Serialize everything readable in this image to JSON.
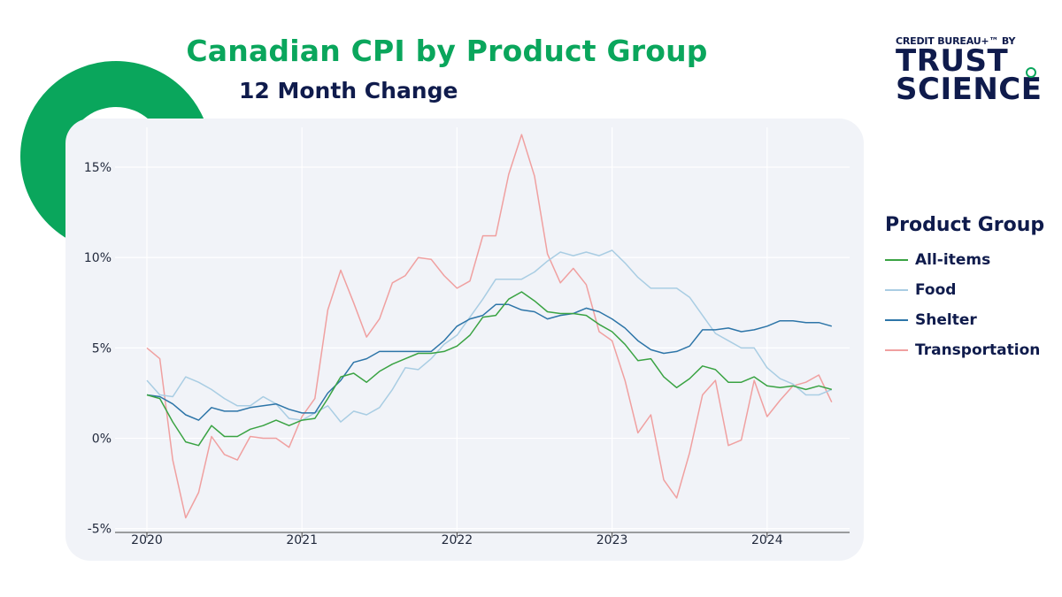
{
  "header": {
    "title": "Canadian CPI by Product Group",
    "subtitle": "12 Month Change"
  },
  "logo": {
    "top_text": "CREDIT BUREAU+™ BY",
    "line1": "TRUST",
    "line2": "SCIENCE",
    "reg": "®"
  },
  "colors": {
    "accent": "#0aa65c",
    "navy": "#0f1b4c",
    "plot_bg": "#f1f3f8"
  },
  "chart_data": {
    "type": "line",
    "title": "Canadian CPI by Product Group",
    "subtitle": "12 Month Change",
    "xlabel": "",
    "ylabel": "",
    "x_start": "2020-01",
    "x_frequency": "monthly",
    "x_ticks": [
      "2020",
      "2021",
      "2022",
      "2023",
      "2024"
    ],
    "y_ticks": [
      -5,
      0,
      5,
      10,
      15
    ],
    "y_tick_labels": [
      "-5%",
      "0%",
      "5%",
      "10%",
      "15%"
    ],
    "ylim": [
      -5.6,
      17.2
    ],
    "grid": true,
    "legend": {
      "title": "Product Group",
      "position": "right"
    },
    "series": [
      {
        "name": "All-items",
        "color": "#3aa343",
        "values": [
          2.4,
          2.2,
          0.9,
          -0.2,
          -0.4,
          0.7,
          0.1,
          0.1,
          0.5,
          0.7,
          1.0,
          0.7,
          1.0,
          1.1,
          2.2,
          3.4,
          3.6,
          3.1,
          3.7,
          4.1,
          4.4,
          4.7,
          4.7,
          4.8,
          5.1,
          5.7,
          6.7,
          6.8,
          7.7,
          8.1,
          7.6,
          7.0,
          6.9,
          6.9,
          6.8,
          6.3,
          5.9,
          5.2,
          4.3,
          4.4,
          3.4,
          2.8,
          3.3,
          4.0,
          3.8,
          3.1,
          3.1,
          3.4,
          2.9,
          2.8,
          2.9,
          2.7,
          2.9,
          2.7
        ]
      },
      {
        "name": "Food",
        "color": "#a9cde3",
        "values": [
          3.2,
          2.4,
          2.3,
          3.4,
          3.1,
          2.7,
          2.2,
          1.8,
          1.8,
          2.3,
          1.9,
          1.1,
          1.0,
          1.4,
          1.8,
          0.9,
          1.5,
          1.3,
          1.7,
          2.7,
          3.9,
          3.8,
          4.4,
          5.2,
          5.7,
          6.7,
          7.7,
          8.8,
          8.8,
          8.8,
          9.2,
          9.8,
          10.3,
          10.1,
          10.3,
          10.1,
          10.4,
          9.7,
          8.9,
          8.3,
          8.3,
          8.3,
          7.8,
          6.8,
          5.8,
          5.4,
          5.0,
          5.0,
          3.9,
          3.3,
          3.0,
          2.4,
          2.4,
          2.7
        ]
      },
      {
        "name": "Shelter",
        "color": "#2d75a8",
        "values": [
          2.4,
          2.3,
          1.9,
          1.3,
          1.0,
          1.7,
          1.5,
          1.5,
          1.7,
          1.8,
          1.9,
          1.6,
          1.4,
          1.4,
          2.5,
          3.2,
          4.2,
          4.4,
          4.8,
          4.8,
          4.8,
          4.8,
          4.8,
          5.4,
          6.2,
          6.6,
          6.8,
          7.4,
          7.4,
          7.1,
          7.0,
          6.6,
          6.8,
          6.9,
          7.2,
          7.0,
          6.6,
          6.1,
          5.4,
          4.9,
          4.7,
          4.8,
          5.1,
          6.0,
          6.0,
          6.1,
          5.9,
          6.0,
          6.2,
          6.5,
          6.5,
          6.4,
          6.4,
          6.2
        ]
      },
      {
        "name": "Transportation",
        "color": "#f0a0a0",
        "values": [
          5.0,
          4.4,
          -1.2,
          -4.4,
          -3.0,
          0.1,
          -0.9,
          -1.2,
          0.1,
          0.0,
          0.0,
          -0.5,
          1.2,
          2.2,
          7.1,
          9.3,
          7.5,
          5.6,
          6.6,
          8.6,
          9.0,
          10.0,
          9.9,
          9.0,
          8.3,
          8.7,
          11.2,
          11.2,
          14.6,
          16.8,
          14.5,
          10.2,
          8.6,
          9.4,
          8.5,
          5.9,
          5.4,
          3.2,
          0.3,
          1.3,
          -2.3,
          -3.3,
          -0.8,
          2.4,
          3.2,
          -0.4,
          -0.1,
          3.2,
          1.2,
          2.1,
          2.9,
          3.1,
          3.5,
          2.0
        ]
      }
    ]
  }
}
